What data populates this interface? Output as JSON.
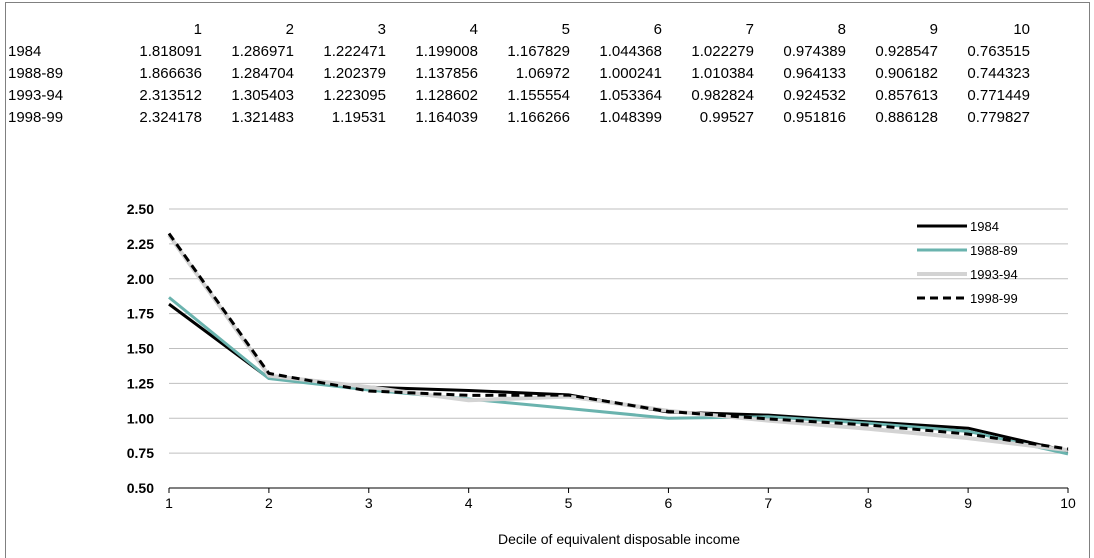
{
  "chart_data": {
    "type": "line",
    "title": "",
    "xlabel": "Decile of equivalent disposable income",
    "ylabel": "",
    "x": [
      1,
      2,
      3,
      4,
      5,
      6,
      7,
      8,
      9,
      10
    ],
    "ylim": [
      0.5,
      2.5
    ],
    "yticks": [
      "0.50",
      "0.75",
      "1.00",
      "1.25",
      "1.50",
      "1.75",
      "2.00",
      "2.25",
      "2.50"
    ],
    "grid": true,
    "legend_position": "top-right",
    "series": [
      {
        "name": "1984",
        "color": "#000000",
        "style": "solid",
        "values": [
          1.818091,
          1.286971,
          1.222471,
          1.199008,
          1.167829,
          1.044368,
          1.022279,
          0.974389,
          0.928547,
          0.763515
        ]
      },
      {
        "name": "1988-89",
        "color": "#6ab3ae",
        "style": "solid",
        "values": [
          1.866636,
          1.284704,
          1.202379,
          1.137856,
          1.06972,
          1.000241,
          1.010384,
          0.964133,
          0.906182,
          0.744323
        ]
      },
      {
        "name": "1993-94",
        "color": "#d3d3d3",
        "style": "solid",
        "values": [
          2.313512,
          1.305403,
          1.223095,
          1.128602,
          1.155554,
          1.053364,
          0.982824,
          0.924532,
          0.857613,
          0.771449
        ]
      },
      {
        "name": "1998-99",
        "color": "#000000",
        "style": "dashed",
        "values": [
          2.324178,
          1.321483,
          1.19531,
          1.164039,
          1.166266,
          1.048399,
          0.99527,
          0.951816,
          0.886128,
          0.779827
        ]
      }
    ]
  },
  "table": {
    "header": [
      "1",
      "2",
      "3",
      "4",
      "5",
      "6",
      "7",
      "8",
      "9",
      "10"
    ],
    "rows": [
      {
        "label": "1984",
        "cells": [
          "1.818091",
          "1.286971",
          "1.222471",
          "1.199008",
          "1.167829",
          "1.044368",
          "1.022279",
          "0.974389",
          "0.928547",
          "0.763515"
        ]
      },
      {
        "label": "1988-89",
        "cells": [
          "1.866636",
          "1.284704",
          "1.202379",
          "1.137856",
          "1.06972",
          "1.000241",
          "1.010384",
          "0.964133",
          "0.906182",
          "0.744323"
        ]
      },
      {
        "label": "1993-94",
        "cells": [
          "2.313512",
          "1.305403",
          "1.223095",
          "1.128602",
          "1.155554",
          "1.053364",
          "0.982824",
          "0.924532",
          "0.857613",
          "0.771449"
        ]
      },
      {
        "label": "1998-99",
        "cells": [
          "2.324178",
          "1.321483",
          "1.19531",
          "1.164039",
          "1.166266",
          "1.048399",
          "0.99527",
          "0.951816",
          "0.886128",
          "0.779827"
        ]
      }
    ]
  }
}
